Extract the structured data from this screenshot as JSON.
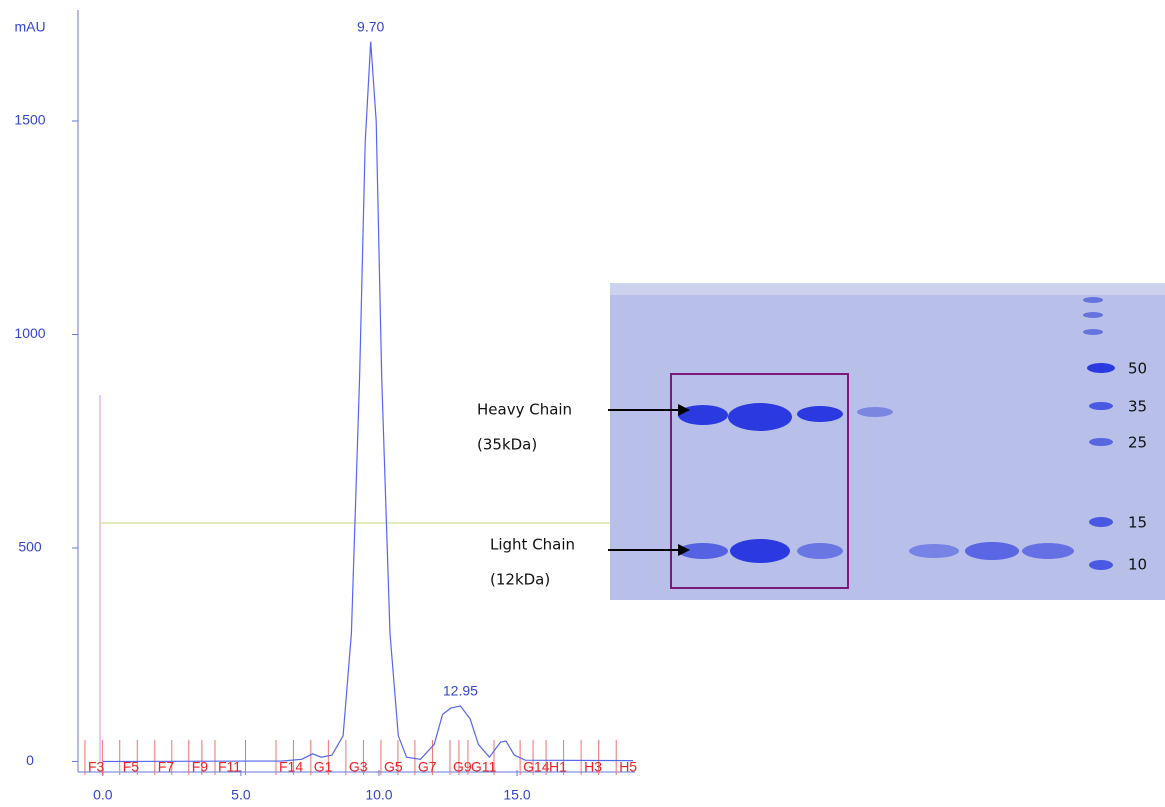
{
  "chart_data": {
    "type": "line",
    "y_label": "mAU",
    "x": [
      0,
      6.5,
      7.2,
      7.6,
      7.9,
      8.3,
      8.7,
      9.0,
      9.3,
      9.5,
      9.7,
      9.9,
      10.1,
      10.4,
      10.7,
      11.0,
      11.5,
      12.0,
      12.3,
      12.6,
      12.95,
      13.3,
      13.6,
      14.0,
      14.4,
      14.6,
      14.9,
      15.3,
      19.2
    ],
    "series": [
      {
        "color": "#5566ee",
        "values": [
          0,
          1,
          5,
          18,
          10,
          15,
          60,
          300,
          900,
          1450,
          1686,
          1500,
          900,
          300,
          60,
          10,
          5,
          40,
          110,
          125,
          130,
          100,
          40,
          10,
          45,
          48,
          15,
          3,
          2
        ]
      }
    ],
    "peaks": [
      {
        "value": 9.7,
        "label": "9.70"
      },
      {
        "value": 12.95,
        "label": "12.95"
      }
    ],
    "xlim": [
      -0.9,
      19.2
    ],
    "ylim": [
      -20,
      1760
    ],
    "xticks": [
      {
        "value": 0,
        "label": "0.0"
      },
      {
        "value": 5,
        "label": "5.0"
      },
      {
        "value": 10,
        "label": "10.0"
      },
      {
        "value": 15,
        "label": "15.0"
      }
    ],
    "yticks": [
      0,
      500,
      1000,
      1500
    ],
    "fractions": {
      "labels": [
        "F3",
        "F5",
        "F7",
        "F9",
        "F11",
        "F14",
        "G1",
        "G3",
        "G5",
        "G7",
        "G9",
        "G11",
        "G14",
        "H1",
        "H3",
        "H5"
      ],
      "x": [
        -0.54,
        0.72,
        1.99,
        3.22,
        4.17,
        6.38,
        7.64,
        8.91,
        10.18,
        11.41,
        12.68,
        13.33,
        15.22,
        16.16,
        17.43,
        18.7
      ]
    }
  },
  "gel": {
    "heavy_chain": "Heavy Chain",
    "heavy_size": "(35kDa)",
    "light_chain": "Light Chain",
    "light_size": "(12kDa)",
    "markers": [
      "50",
      "35",
      "25",
      "15",
      "10"
    ]
  }
}
